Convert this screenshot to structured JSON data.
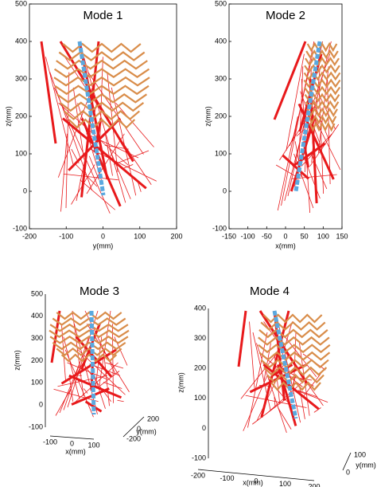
{
  "panels": [
    {
      "title": "Mode 1",
      "x_label": "y(mm)",
      "z_label": "z(mm)",
      "z_ticks": [
        500,
        400,
        300,
        200,
        100,
        0,
        -100
      ],
      "x_ticks": [
        -200,
        -100,
        0,
        100,
        200
      ]
    },
    {
      "title": "Mode 2",
      "x_label": "x(mm)",
      "z_label": "z(mm)",
      "z_ticks": [
        500,
        400,
        300,
        200,
        100,
        0,
        -100
      ],
      "x_ticks": [
        -150,
        -100,
        -50,
        0,
        50,
        100,
        150
      ]
    },
    {
      "title": "Mode 3",
      "x_label": "x(mm)",
      "y_label": "y(mm)",
      "z_label": "z(mm)",
      "z_ticks": [
        500,
        400,
        300,
        200,
        100,
        0,
        -100
      ],
      "x_ticks": [
        -100,
        0,
        100
      ],
      "y_ticks": [
        -200,
        0,
        200
      ]
    },
    {
      "title": "Mode 4",
      "x_label": "x(mm)",
      "y_label": "y(mm)",
      "z_label": "z(mm)",
      "z_ticks": [
        400,
        300,
        200,
        100,
        0,
        -100
      ],
      "x_ticks": [
        -200,
        -100,
        0,
        100,
        200
      ],
      "y_ticks": [
        0,
        100
      ]
    }
  ]
}
